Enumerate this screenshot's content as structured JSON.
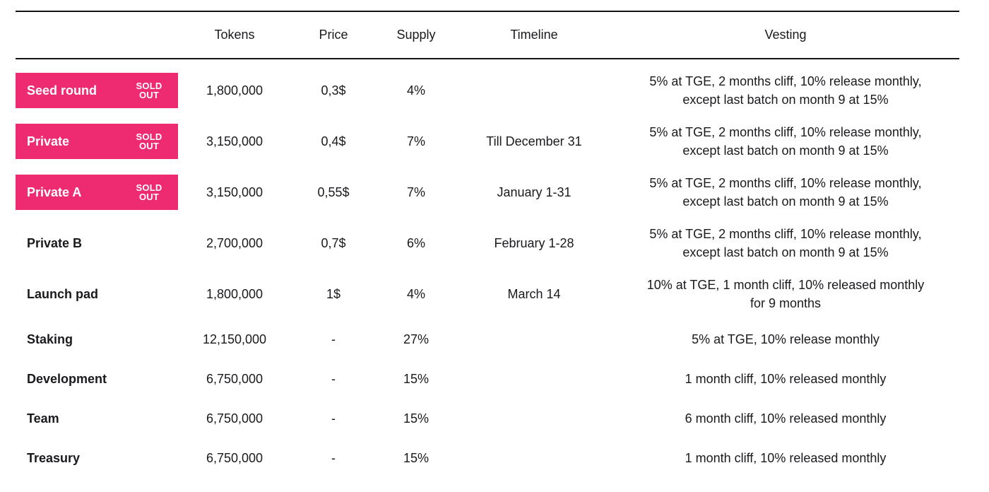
{
  "chart_data": {
    "type": "table",
    "columns": [
      "",
      "Tokens",
      "Price",
      "Supply",
      "Timeline",
      "Vesting"
    ],
    "badge_label": "SOLD OUT",
    "rows": [
      {
        "name": "Seed round",
        "badge": "SOLD OUT",
        "tokens": "1,800,000",
        "price": "0,3$",
        "supply": "4%",
        "timeline": "",
        "vesting": [
          "5% at TGE, 2 months cliff, 10% release monthly,",
          "except last batch on month 9 at 15%"
        ]
      },
      {
        "name": "Private",
        "badge": "SOLD OUT",
        "tokens": "3,150,000",
        "price": "0,4$",
        "supply": "7%",
        "timeline": "Till December 31",
        "vesting": [
          "5% at TGE, 2 months cliff, 10% release monthly,",
          "except last batch on month 9 at 15%"
        ]
      },
      {
        "name": "Private A",
        "badge": "SOLD OUT",
        "tokens": "3,150,000",
        "price": "0,55$",
        "supply": "7%",
        "timeline": "January 1-31",
        "vesting": [
          "5% at TGE, 2 months cliff, 10% release monthly,",
          "except last batch on month 9 at 15%"
        ]
      },
      {
        "name": "Private B",
        "tokens": "2,700,000",
        "price": "0,7$",
        "supply": "6%",
        "timeline": "February 1-28",
        "vesting": [
          "5% at TGE, 2 months cliff, 10% release monthly,",
          "except last batch on month 9 at 15%"
        ]
      },
      {
        "name": "Launch pad",
        "tokens": "1,800,000",
        "price": "1$",
        "supply": "4%",
        "timeline": "March 14",
        "vesting": [
          "10% at TGE, 1 month cliff, 10% released monthly",
          "for 9 months"
        ]
      },
      {
        "name": "Staking",
        "tokens": "12,150,000",
        "price": "-",
        "supply": "27%",
        "timeline": "",
        "vesting": [
          "5% at TGE, 10% release monthly"
        ]
      },
      {
        "name": "Development",
        "tokens": "6,750,000",
        "price": "-",
        "supply": "15%",
        "timeline": "",
        "vesting": [
          "1 month cliff, 10% released monthly"
        ]
      },
      {
        "name": "Team",
        "tokens": "6,750,000",
        "price": "-",
        "supply": "15%",
        "timeline": "",
        "vesting": [
          "6 month cliff, 10% released monthly"
        ]
      },
      {
        "name": "Treasury",
        "tokens": "6,750,000",
        "price": "-",
        "supply": "15%",
        "timeline": "",
        "vesting": [
          "1 month cliff, 10% released monthly"
        ]
      }
    ]
  },
  "colors": {
    "accent_pink": "#ee2a70",
    "badge_text": "#ffffff",
    "text_dark": "#1a1a1e",
    "border_dark": "#141416"
  }
}
